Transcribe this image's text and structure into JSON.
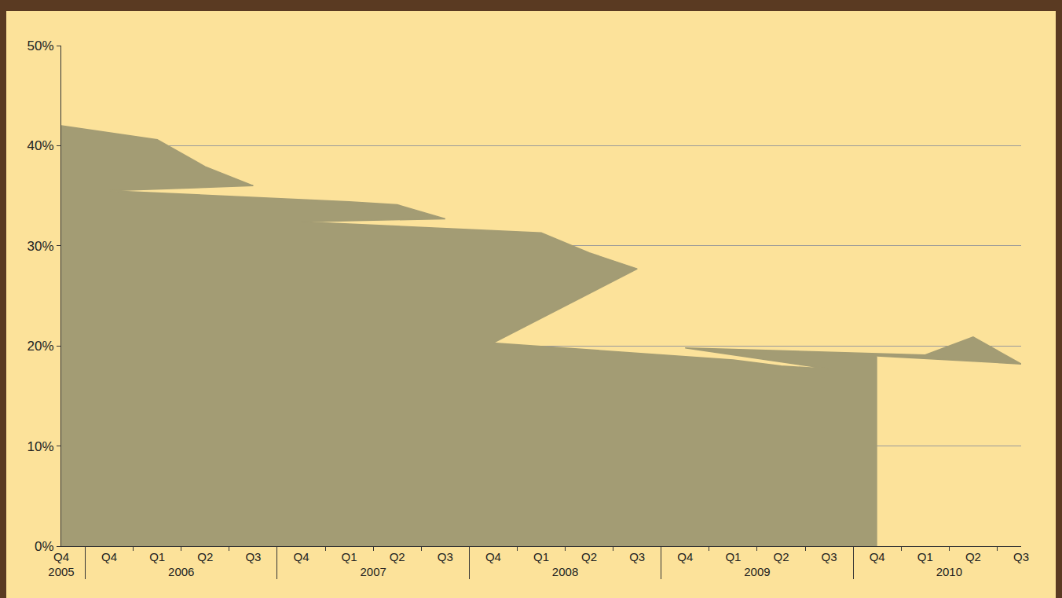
{
  "chart_data": {
    "type": "area",
    "categories": [
      "Q4",
      "Q1",
      "Q2",
      "Q3",
      "Q4",
      "Q1",
      "Q2",
      "Q3",
      "Q4",
      "Q1",
      "Q2",
      "Q3",
      "Q4",
      "Q1",
      "Q2",
      "Q3",
      "Q4",
      "Q1",
      "Q2",
      "Q3",
      "Q4"
    ],
    "groups": [
      "2005",
      "2006",
      "2006",
      "2006",
      "2006",
      "2007",
      "2007",
      "2007",
      "2007",
      "2008",
      "2008",
      "2008",
      "2008",
      "2009",
      "2009",
      "2009",
      "2009",
      "2010",
      "2010",
      "2010",
      "2010"
    ],
    "values": [
      42.0,
      40.6,
      37.9,
      36.0,
      35.5,
      34.4,
      34.1,
      32.7,
      32.4,
      31.3,
      29.3,
      27.7,
      20.3,
      18.6,
      18.0,
      17.7,
      19.8,
      19.1,
      20.9,
      18.2,
      19.0
    ],
    "color": "#a39c74",
    "ylim": [
      0,
      50
    ],
    "yticks": [
      {
        "value": 0,
        "label": "0%"
      },
      {
        "value": 10,
        "label": "10%"
      },
      {
        "value": 20,
        "label": "20%"
      },
      {
        "value": 30,
        "label": "30%"
      },
      {
        "value": 40,
        "label": "40%"
      },
      {
        "value": 50,
        "label": "50%"
      }
    ],
    "grid": true
  }
}
